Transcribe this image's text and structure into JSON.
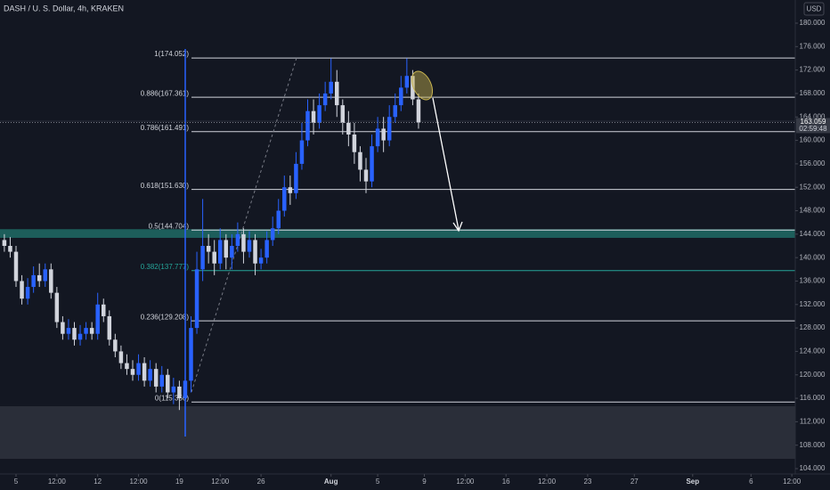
{
  "chart_data": {
    "type": "candlestick",
    "title": "DASH / U. S. Dollar, 4h, KRAKEN",
    "currency": "USD",
    "x": [
      -1,
      -0.5,
      0,
      0.5,
      1,
      1.5,
      2,
      2.5,
      3,
      3.5,
      4,
      4.5,
      5,
      5.5,
      6,
      6.5,
      7,
      7.5,
      8,
      8.5,
      9,
      9.5,
      10,
      10.5,
      11,
      11.5,
      12,
      12.5,
      13,
      13.5,
      14,
      14.5,
      15,
      15.5,
      16,
      16.5,
      17,
      17.5,
      18,
      18.5,
      19,
      19.5,
      20,
      20.5,
      21,
      21.5,
      22,
      22.5,
      23,
      23.5,
      24,
      24.5,
      25,
      25.5,
      26,
      26.5,
      27,
      27.5,
      28,
      28.5,
      29,
      29.5,
      30,
      30.5,
      31,
      31.5,
      32,
      32.5,
      33,
      33.5,
      34,
      34.5
    ],
    "open": [
      143,
      142,
      141,
      136,
      133,
      135,
      137,
      136,
      138,
      134,
      129,
      127,
      128,
      126,
      127,
      128,
      127,
      132,
      130,
      126,
      124,
      122,
      121,
      120,
      122,
      119,
      121,
      118,
      120,
      117,
      118,
      116,
      119,
      128,
      138,
      142,
      141,
      139,
      143,
      140,
      142,
      144,
      141,
      143,
      139,
      140,
      143,
      145,
      148,
      152,
      151,
      156,
      160,
      165,
      163,
      166,
      168,
      170,
      166,
      163,
      161,
      158,
      155,
      153,
      159,
      162,
      160,
      164,
      166,
      169,
      171,
      167
    ],
    "high": [
      144,
      143.5,
      142,
      137,
      136.5,
      138.5,
      139,
      139,
      139,
      135,
      130,
      129.5,
      129,
      128.5,
      129,
      129,
      134,
      133,
      131,
      127,
      125,
      123.5,
      122.5,
      123.5,
      123,
      122.5,
      122,
      121.5,
      121,
      119.5,
      119,
      120,
      130,
      141,
      150,
      144,
      143,
      145,
      144,
      144,
      146,
      145,
      144.5,
      144,
      141.5,
      144.5,
      147,
      150,
      154,
      154,
      158,
      163,
      167,
      167,
      168,
      170,
      174,
      172,
      167,
      165,
      163,
      159,
      157,
      161,
      164,
      164,
      166,
      168,
      171,
      174,
      172,
      168
    ],
    "low": [
      141,
      140,
      135,
      132,
      132,
      134,
      135,
      135,
      133,
      128,
      126,
      126,
      125,
      125,
      126,
      126,
      126,
      129,
      125,
      123,
      121,
      120,
      119,
      119,
      118,
      118,
      117,
      117,
      116,
      115,
      114,
      110,
      117,
      127,
      136,
      139,
      137,
      138,
      138,
      138,
      141,
      139,
      140,
      137,
      138,
      139,
      142,
      144,
      147,
      149,
      150,
      155,
      159,
      161,
      162,
      165,
      167,
      164,
      161,
      159,
      156,
      153,
      151,
      152,
      158,
      158,
      159,
      163,
      165,
      168,
      166,
      162
    ],
    "close": [
      142,
      141,
      136,
      133,
      135,
      137,
      136,
      138,
      134,
      129,
      127,
      128,
      126,
      127,
      128,
      127,
      132,
      130,
      126,
      124,
      122,
      121,
      120,
      122,
      119,
      121,
      118,
      120,
      117,
      118,
      116,
      119,
      128,
      138,
      142,
      141,
      139,
      143,
      140,
      142,
      144,
      141,
      143,
      139,
      140,
      143,
      145,
      148,
      152,
      151,
      156,
      160,
      165,
      163,
      166,
      168,
      170,
      166,
      163,
      161,
      158,
      155,
      153,
      159,
      162,
      160,
      164,
      166,
      169,
      171,
      167,
      163.059
    ],
    "up_color": "#2962ff",
    "down_color": "#d1d4dc",
    "xlim": [
      -1.374,
      66.794
    ],
    "xticks": [
      {
        "value": 0,
        "label": "5"
      },
      {
        "value": 3.5,
        "label": "12:00"
      },
      {
        "value": 7,
        "label": "12"
      },
      {
        "value": 10.5,
        "label": "12:00"
      },
      {
        "value": 14,
        "label": "19"
      },
      {
        "value": 17.5,
        "label": "12:00"
      },
      {
        "value": 21,
        "label": "26"
      },
      {
        "value": 27,
        "label": "Aug"
      },
      {
        "value": 31,
        "label": "5"
      },
      {
        "value": 35,
        "label": "9"
      },
      {
        "value": 38.5,
        "label": "12:00"
      },
      {
        "value": 42,
        "label": "16"
      },
      {
        "value": 45.5,
        "label": "12:00"
      },
      {
        "value": 49,
        "label": "23"
      },
      {
        "value": 53,
        "label": "27"
      },
      {
        "value": 58,
        "label": "Sep"
      },
      {
        "value": 63,
        "label": "6"
      },
      {
        "value": 66.5,
        "label": "12:00"
      }
    ],
    "ylim": [
      103.09,
      183.95
    ],
    "yticks": [
      {
        "value": 180,
        "label": "180.000"
      },
      {
        "value": 176,
        "label": "176.000"
      },
      {
        "value": 172,
        "label": "172.000"
      },
      {
        "value": 168,
        "label": "168.000"
      },
      {
        "value": 164,
        "label": "164.000"
      },
      {
        "value": 160,
        "label": "160.000"
      },
      {
        "value": 156,
        "label": "156.000"
      },
      {
        "value": 152,
        "label": "152.000"
      },
      {
        "value": 148,
        "label": "148.000"
      },
      {
        "value": 144,
        "label": "144.000"
      },
      {
        "value": 140,
        "label": "140.000"
      },
      {
        "value": 136,
        "label": "136.000"
      },
      {
        "value": 132,
        "label": "132.000"
      },
      {
        "value": 128,
        "label": "128.000"
      },
      {
        "value": 124,
        "label": "124.000"
      },
      {
        "value": 120,
        "label": "120.000"
      },
      {
        "value": 116,
        "label": "116.000"
      },
      {
        "value": 112,
        "label": "112.000"
      },
      {
        "value": 108,
        "label": "108.000"
      },
      {
        "value": 104,
        "label": "104.000"
      }
    ],
    "grid": false,
    "last_price": 163.059,
    "countdown": "02:59:48",
    "fib_levels": [
      {
        "value": 174.052,
        "label": "1(174.052)",
        "color": "#d1d4dc"
      },
      {
        "value": 167.361,
        "label": "0.886(167.361)",
        "color": "#d1d4dc"
      },
      {
        "value": 161.491,
        "label": "0.786(161.491)",
        "color": "#d1d4dc"
      },
      {
        "value": 151.63,
        "label": "0.618(151.630)",
        "color": "#d1d4dc"
      },
      {
        "value": 144.704,
        "label": "0.5(144.704)",
        "color": "#d1d4dc"
      },
      {
        "value": 137.777,
        "label": "0.382(137.777)",
        "color": "#26a69a"
      },
      {
        "value": 129.208,
        "label": "0.236(129.208)",
        "color": "#d1d4dc"
      },
      {
        "value": 115.356,
        "label": "0(115.356)",
        "color": "#d1d4dc"
      }
    ],
    "zones": [
      {
        "from": 143.37,
        "to": 144.85,
        "color": "#1d5e5b"
      },
      {
        "from": 105.67,
        "to": 114.64,
        "color": "#2a2e39"
      }
    ]
  }
}
